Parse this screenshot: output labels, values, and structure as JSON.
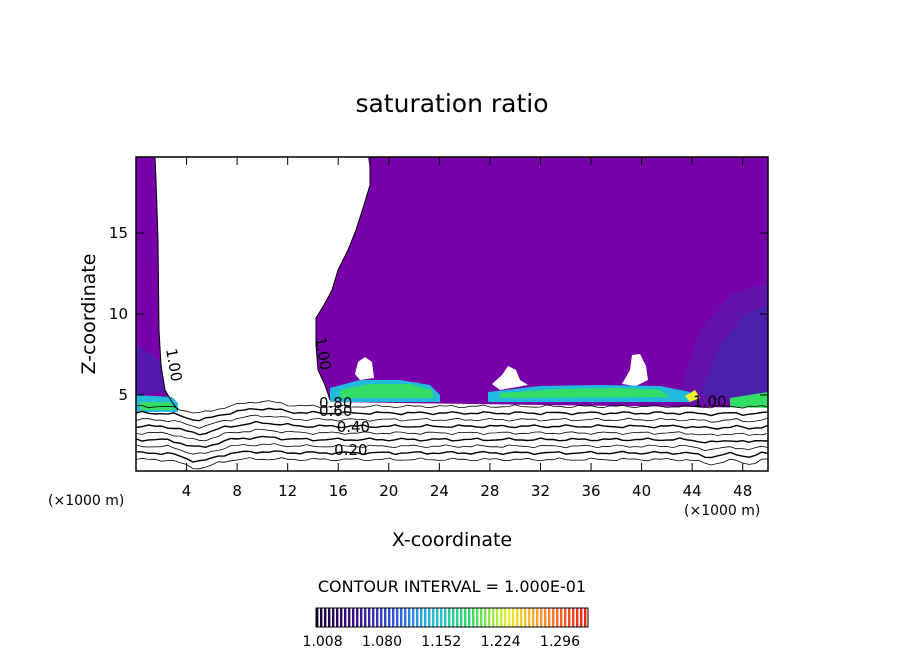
{
  "chart_data": {
    "type": "heatmap",
    "title": "saturation ratio",
    "xlabel": "X-coordinate",
    "ylabel": "Z-coordinate",
    "x_unit_left": "(×1000 m)",
    "x_unit_right": "(×1000 m)",
    "xlim": [
      0,
      50
    ],
    "ylim": [
      0.3,
      19.7
    ],
    "x_ticks": [
      4,
      8,
      12,
      16,
      20,
      24,
      28,
      32,
      36,
      40,
      44,
      48
    ],
    "y_ticks": [
      5,
      10,
      15
    ],
    "contour_interval_text": "CONTOUR INTERVAL = 1.000E-01",
    "contour_labels": [
      {
        "text": "1.00",
        "x": 2.6,
        "z": 6.8
      },
      {
        "text": "1.00",
        "x": 14.4,
        "z": 7.5
      },
      {
        "text": "1.00",
        "x": 45.4,
        "z": 4.3
      },
      {
        "text": "0.80",
        "x": 15.8,
        "z": 4.2
      },
      {
        "text": "0.60",
        "x": 15.8,
        "z": 3.7
      },
      {
        "text": "0.40",
        "x": 17.2,
        "z": 2.7
      },
      {
        "text": "0.20",
        "x": 17.0,
        "z": 1.3
      }
    ],
    "contour_levels": [
      0.1,
      0.2,
      0.3,
      0.4,
      0.5,
      0.6,
      0.7,
      0.8,
      0.9
    ],
    "colorbar": {
      "min": 1.0,
      "max": 1.33,
      "tick_labels": [
        "1.008",
        "1.080",
        "1.152",
        "1.224",
        "1.296"
      ],
      "colors": [
        "#1a0033",
        "#3a0f8a",
        "#3355e0",
        "#22bbdd",
        "#33dd66",
        "#eeee33",
        "#ff8833",
        "#ee2211"
      ]
    },
    "fill_color": "#7700aa",
    "grid": false,
    "legend": "none"
  }
}
